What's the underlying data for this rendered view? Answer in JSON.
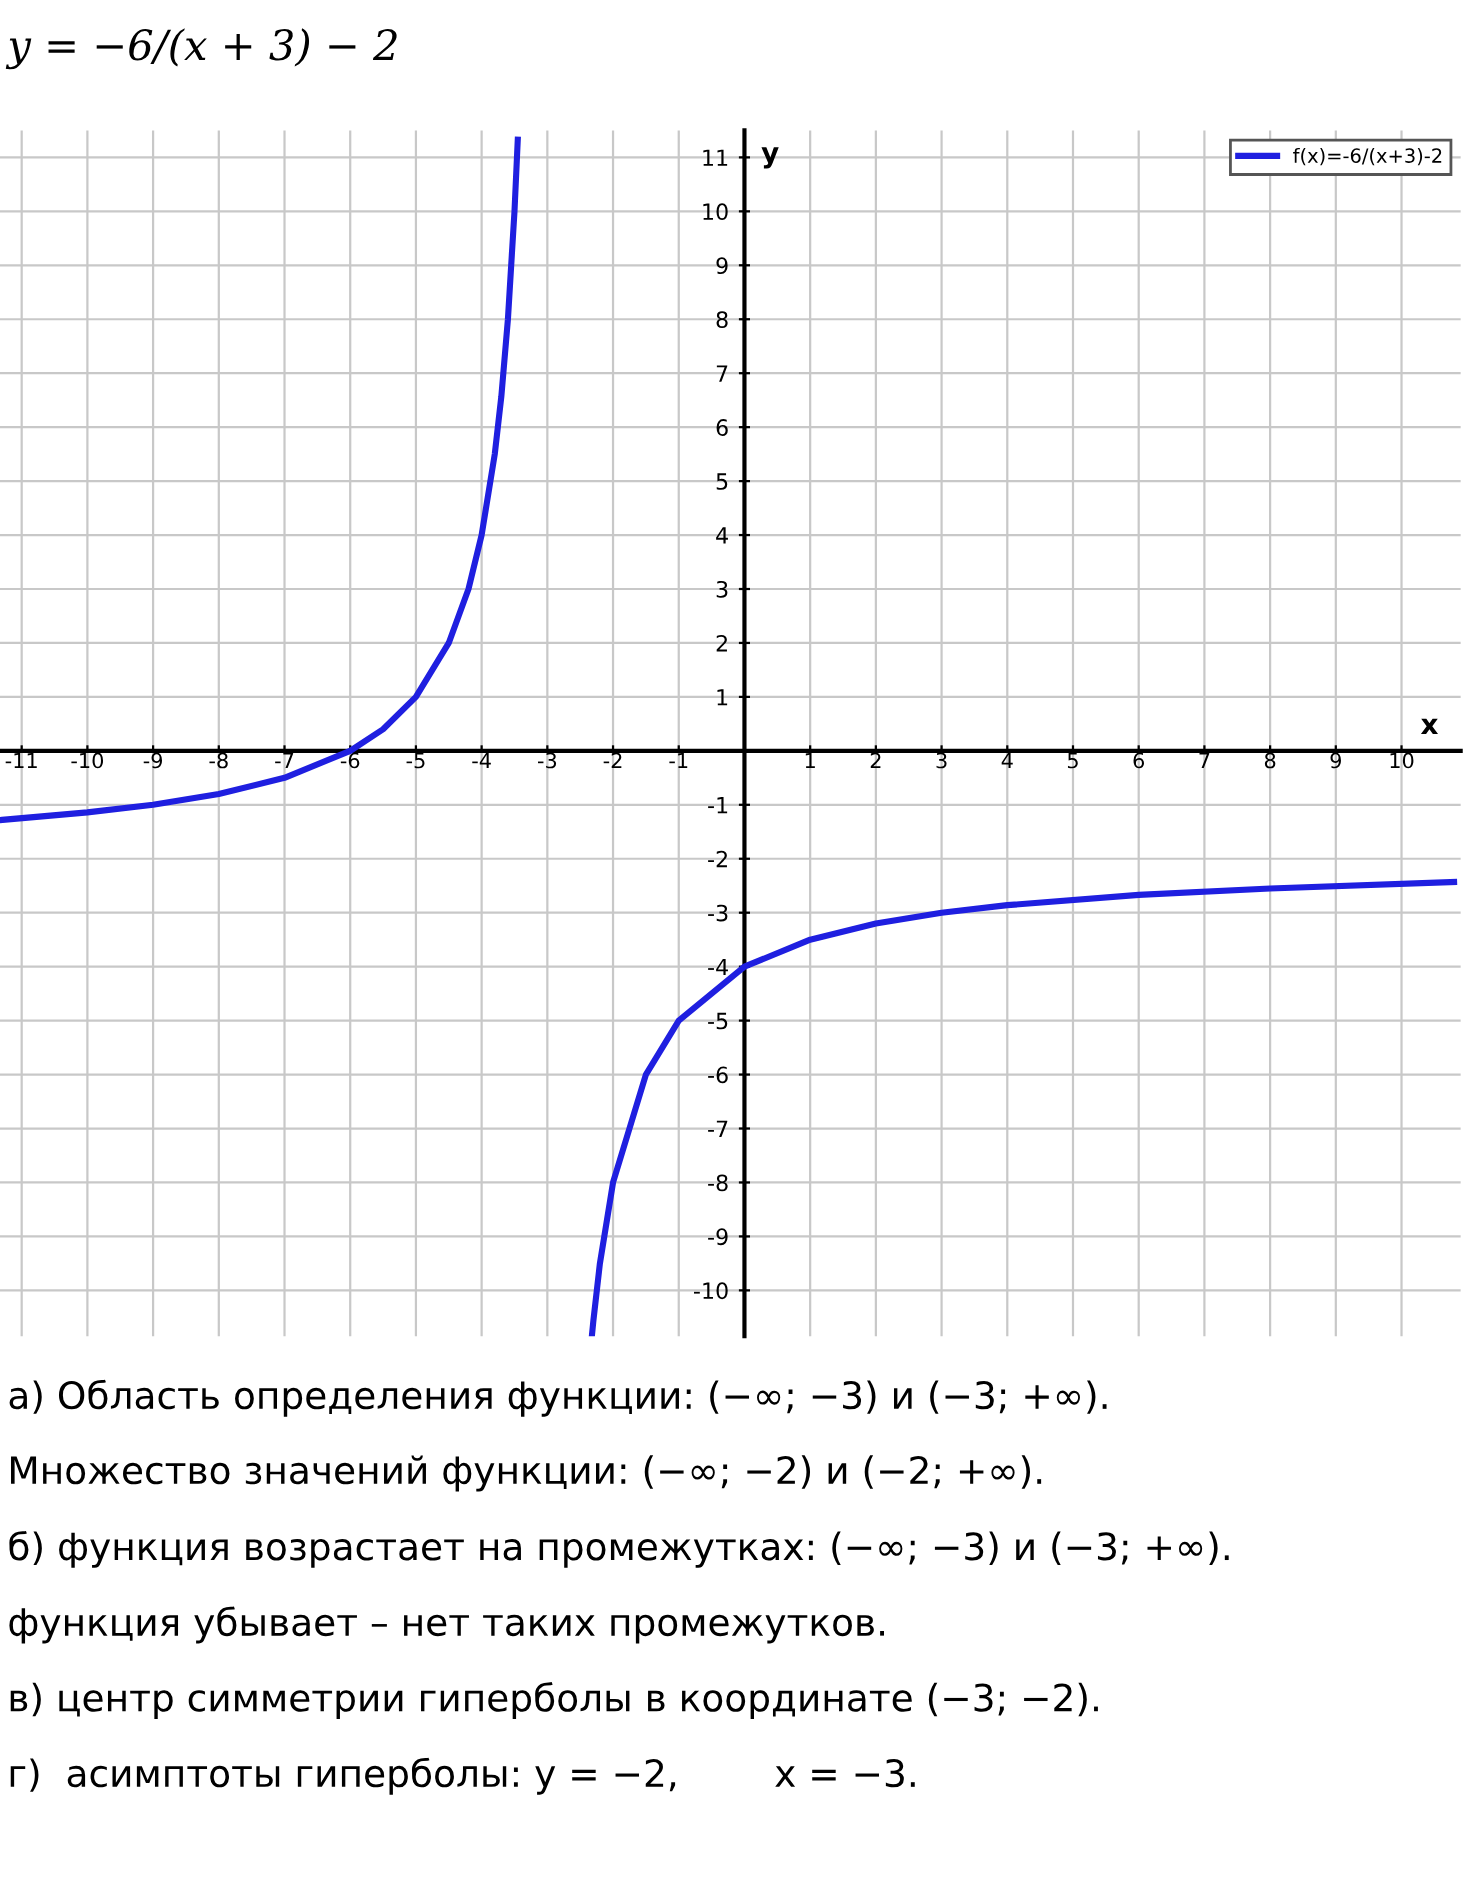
{
  "chart_data": {
    "type": "line",
    "title": "y = −6/(x + 3) − 2",
    "xlabel": "x",
    "ylabel": "y",
    "x": [
      -11.3,
      -10,
      -9,
      -8,
      -7,
      -6,
      -5.5,
      -5,
      -4.5,
      -4.2,
      -4,
      -3.8,
      -3.7,
      -3.6,
      -3.5,
      -3.45,
      -3,
      -2.32,
      -2.3,
      -2.2,
      -2,
      -1.5,
      -1,
      0,
      1,
      2,
      3,
      4,
      6,
      8,
      10.8
    ],
    "series": [
      {
        "name": "f(x)=-6/(x+3)-2",
        "color": "#1f1fe0",
        "values": [
          -1.28,
          -1.14,
          -1,
          -0.8,
          -0.5,
          0,
          0.4,
          1,
          2,
          3,
          4,
          5.5,
          6.57,
          8,
          10,
          11.33,
          null,
          -10.82,
          -10.57,
          -9.5,
          -8,
          -6,
          -5,
          -4,
          -3.5,
          -3.2,
          -3,
          -2.86,
          -2.67,
          -2.55,
          -2.43
        ]
      }
    ],
    "xlim": [
      -11.33,
      10.9
    ],
    "ylim": [
      -10.85,
      11.5
    ],
    "xticks": [
      -11,
      -10,
      -9,
      -8,
      -7,
      -6,
      -5,
      -4,
      -3,
      -2,
      -1,
      1,
      2,
      3,
      4,
      5,
      6,
      7,
      8,
      9,
      10
    ],
    "yticks": [
      -10,
      -9,
      -8,
      -7,
      -6,
      -5,
      -4,
      -3,
      -2,
      -1,
      1,
      2,
      3,
      4,
      5,
      6,
      7,
      8,
      9,
      10,
      11
    ],
    "grid": true,
    "legend": "top right",
    "marker": "none",
    "line_style": "solid",
    "annotations": [
      "а) Область определения функции: (−∞; −3) и (−3; +∞).",
      "Множество значений функции: (−∞; −2) и (−2; +∞).",
      "б) функция возрастает на промежутках: (−∞; −3) и (−3; +∞).",
      "функция убывает – нет таких промежутков.",
      "в) центр симметрии гиперболы в координате (−3; −2).",
      "г)  асимптоты гиперболы: y = −2,        x = −3."
    ]
  }
}
